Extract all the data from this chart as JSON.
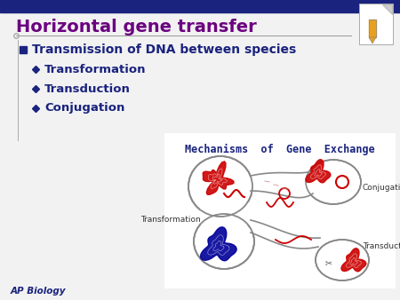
{
  "title": "Horizontal gene transfer",
  "title_color": "#6B0080",
  "title_fontsize": 14,
  "header_bar_color": "#1a237e",
  "bg_color": "#f2f2f2",
  "bullet1": "Transmission of DNA between species",
  "bullet1_color": "#1a237e",
  "bullet1_fontsize": 10,
  "sub_bullets": [
    "Transformation",
    "Transduction",
    "Conjugation"
  ],
  "sub_bullet_color": "#1a237e",
  "sub_bullet_fontsize": 9.5,
  "diagram_title": "Mechanisms  of  Gene  Exchange",
  "diagram_title_color": "#1a237e",
  "diagram_title_fontsize": 8.5,
  "label_transformation": "Transformation",
  "label_conjugation": "Conjugation",
  "label_transduction": "Transduction",
  "label_color": "#333333",
  "label_fontsize": 6.5,
  "footer_text": "AP Biology",
  "footer_color": "#1a237e",
  "footer_fontsize": 7.5,
  "red_color": "#cc0000",
  "blue_color": "#000099",
  "cell_outline_color": "#888888"
}
